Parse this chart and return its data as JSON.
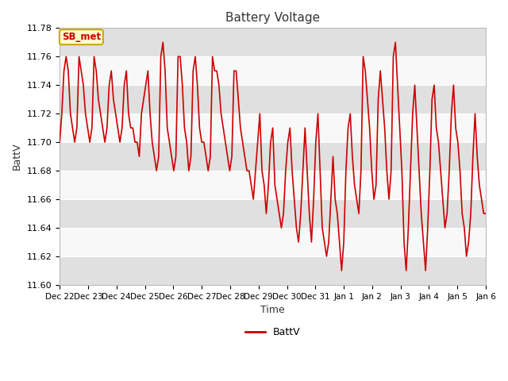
{
  "title": "Battery Voltage",
  "xlabel": "Time",
  "ylabel": "BattV",
  "ylim": [
    11.6,
    11.78
  ],
  "yticks": [
    11.6,
    11.62,
    11.64,
    11.66,
    11.68,
    11.7,
    11.72,
    11.74,
    11.76,
    11.78
  ],
  "line_color": "#cc0000",
  "line_width": 1.2,
  "bg_color": "#ffffff",
  "plot_bg_light": "#f0f0f0",
  "plot_bg_dark": "#e0e0e0",
  "legend_label": "BattV",
  "annotation_text": "SB_met",
  "annotation_bg": "#ffffcc",
  "annotation_border": "#ccaa00",
  "annotation_text_color": "#cc0000",
  "x_tick_labels": [
    "Dec 22",
    "Dec 23",
    "Dec 24",
    "Dec 25",
    "Dec 26",
    "Dec 27",
    "Dec 28",
    "Dec 29",
    "Dec 30",
    "Dec 31",
    "Jan 1",
    "Jan 2",
    "Jan 3",
    "Jan 4",
    "Jan 5",
    "Jan 6"
  ],
  "voltage_data": [
    11.7,
    11.72,
    11.75,
    11.76,
    11.75,
    11.72,
    11.71,
    11.7,
    11.71,
    11.76,
    11.75,
    11.74,
    11.72,
    11.71,
    11.7,
    11.71,
    11.76,
    11.75,
    11.73,
    11.72,
    11.71,
    11.7,
    11.71,
    11.74,
    11.75,
    11.73,
    11.72,
    11.71,
    11.7,
    11.71,
    11.74,
    11.75,
    11.72,
    11.71,
    11.71,
    11.7,
    11.7,
    11.69,
    11.72,
    11.73,
    11.74,
    11.75,
    11.72,
    11.7,
    11.69,
    11.68,
    11.69,
    11.76,
    11.77,
    11.75,
    11.71,
    11.7,
    11.69,
    11.68,
    11.69,
    11.76,
    11.76,
    11.74,
    11.71,
    11.7,
    11.68,
    11.69,
    11.75,
    11.76,
    11.74,
    11.71,
    11.7,
    11.7,
    11.69,
    11.68,
    11.69,
    11.76,
    11.75,
    11.75,
    11.74,
    11.72,
    11.71,
    11.7,
    11.69,
    11.68,
    11.69,
    11.75,
    11.75,
    11.73,
    11.71,
    11.7,
    11.69,
    11.68,
    11.68,
    11.67,
    11.66,
    11.68,
    11.7,
    11.72,
    11.68,
    11.67,
    11.65,
    11.67,
    11.7,
    11.71,
    11.67,
    11.66,
    11.65,
    11.64,
    11.65,
    11.68,
    11.7,
    11.71,
    11.68,
    11.66,
    11.64,
    11.63,
    11.65,
    11.68,
    11.71,
    11.68,
    11.65,
    11.63,
    11.66,
    11.7,
    11.72,
    11.68,
    11.64,
    11.63,
    11.62,
    11.63,
    11.66,
    11.69,
    11.66,
    11.65,
    11.63,
    11.61,
    11.63,
    11.68,
    11.71,
    11.72,
    11.69,
    11.67,
    11.66,
    11.65,
    11.68,
    11.76,
    11.75,
    11.73,
    11.71,
    11.68,
    11.66,
    11.67,
    11.73,
    11.75,
    11.73,
    11.71,
    11.68,
    11.66,
    11.68,
    11.76,
    11.77,
    11.74,
    11.71,
    11.68,
    11.63,
    11.61,
    11.64,
    11.68,
    11.72,
    11.74,
    11.71,
    11.68,
    11.65,
    11.63,
    11.61,
    11.64,
    11.68,
    11.73,
    11.74,
    11.71,
    11.7,
    11.68,
    11.66,
    11.64,
    11.65,
    11.68,
    11.72,
    11.74,
    11.71,
    11.7,
    11.68,
    11.65,
    11.64,
    11.62,
    11.63,
    11.65,
    11.69,
    11.72,
    11.69,
    11.67,
    11.66,
    11.65,
    11.65
  ]
}
